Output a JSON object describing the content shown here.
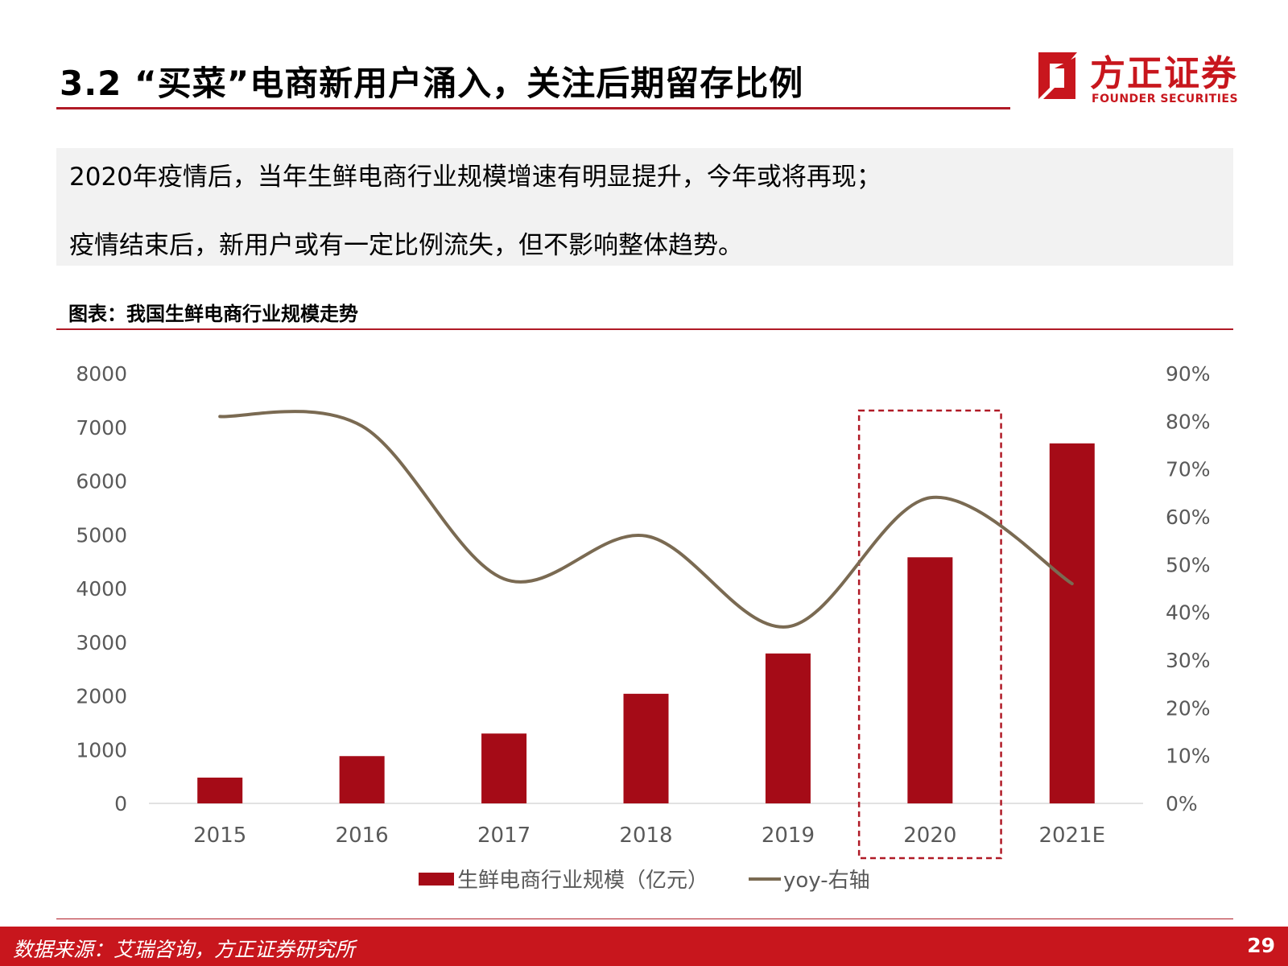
{
  "page": {
    "title": "3.2 “买菜”电商新用户涌入，关注后期留存比例",
    "logo": {
      "cn": "方正证券",
      "en": "FOUNDER SECURITIES",
      "name": "founder-logo-icon"
    },
    "summary": [
      "2020年疫情后，当年生鲜电商行业规模增速有明显提升，今年或将再现；",
      "疫情结束后，新用户或有一定比例流失，但不影响整体趋势。"
    ],
    "chart_caption": "图表：我国生鲜电商行业规模走势",
    "source": "数据来源：艾瑞咨询，方正证券研究所",
    "page_number": "29"
  },
  "colors": {
    "brand_red": "#c8161d",
    "bar": "#a50b17",
    "line": "#7a6a52",
    "highlight_box": "#b01a26",
    "axis_text": "#595959",
    "summary_bg": "#f2f2f2"
  },
  "chart_data": {
    "type": "bar",
    "categories": [
      "2015",
      "2016",
      "2017",
      "2018",
      "2019",
      "2020",
      "2021E"
    ],
    "series": [
      {
        "name": "生鲜电商行业规模（亿元）",
        "type": "bar",
        "axis": "left",
        "values": [
          480,
          880,
          1300,
          2040,
          2790,
          4580,
          6700
        ]
      },
      {
        "name": "yoy-右轴",
        "type": "line",
        "axis": "right",
        "values": [
          0.81,
          0.79,
          0.47,
          0.56,
          0.37,
          0.64,
          0.46
        ]
      }
    ],
    "y_left": {
      "min": 0,
      "max": 8000,
      "ticks": [
        "0",
        "1000",
        "2000",
        "3000",
        "4000",
        "5000",
        "6000",
        "7000",
        "8000"
      ]
    },
    "y_right": {
      "min": 0,
      "max": 0.9,
      "ticks": [
        "0%",
        "10%",
        "20%",
        "30%",
        "40%",
        "50%",
        "60%",
        "70%",
        "80%",
        "90%"
      ]
    },
    "highlight_category": "2020",
    "legend_position": "bottom",
    "grid": false
  }
}
